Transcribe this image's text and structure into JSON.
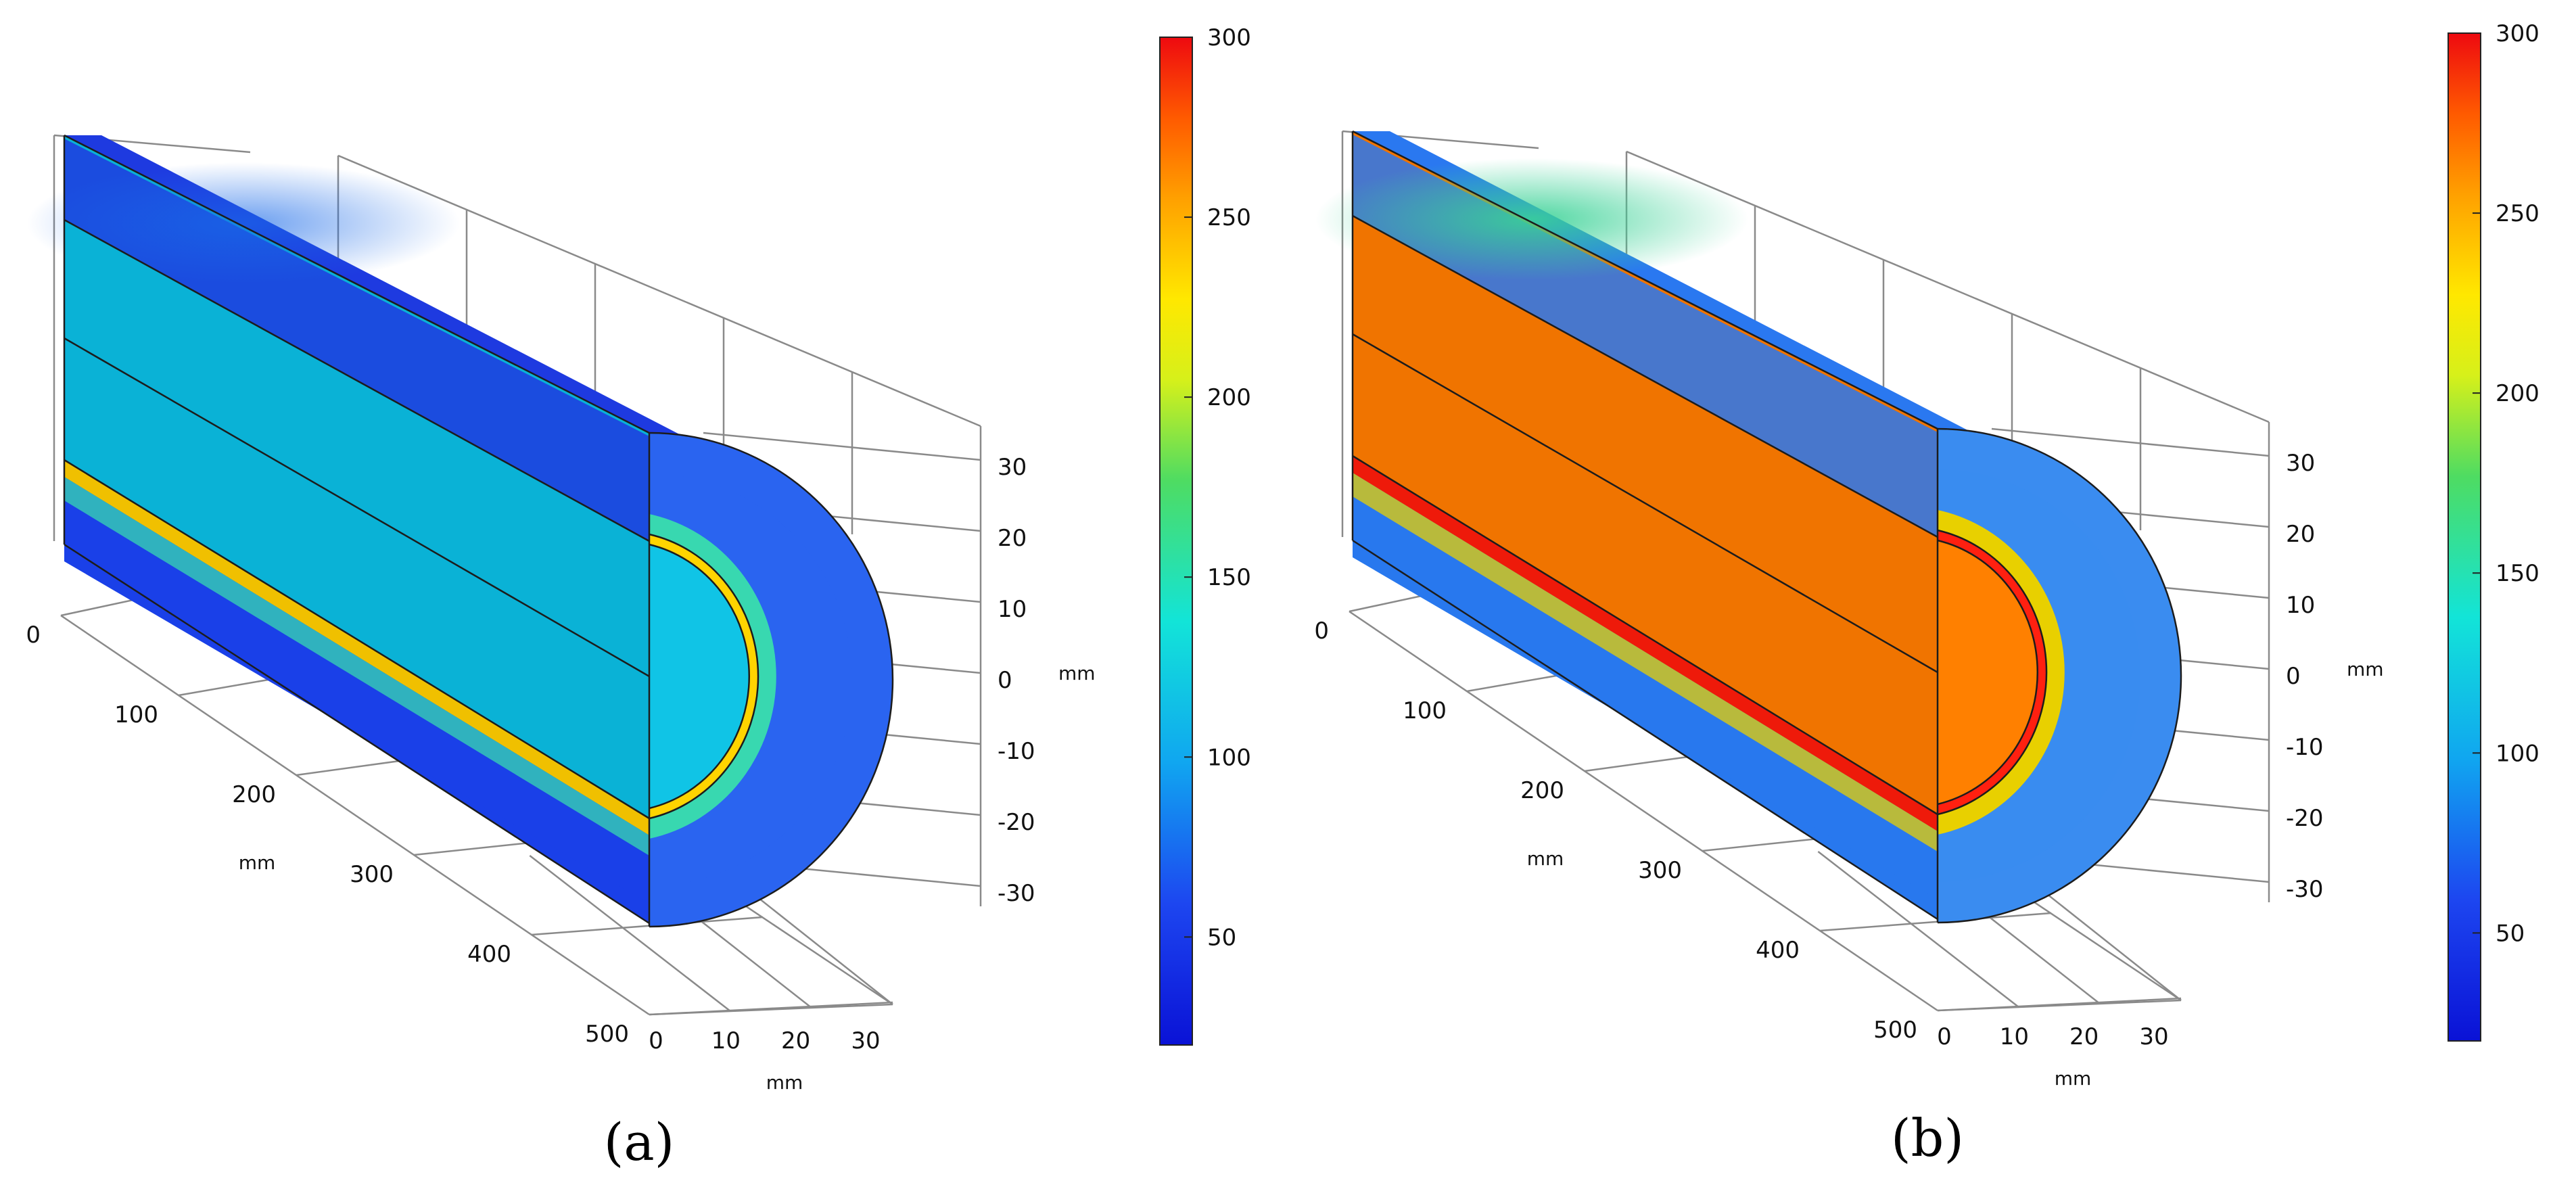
{
  "panels": [
    {
      "label": "(a)",
      "axes": {
        "x_ticks": [
          "0",
          "100",
          "200",
          "300",
          "400",
          "500"
        ],
        "x_unit": "mm",
        "y_ticks": [
          "0",
          "10",
          "20",
          "30"
        ],
        "y_unit": "mm",
        "z_ticks": [
          "30",
          "20",
          "10",
          "0",
          "-10",
          "-20",
          "-30"
        ],
        "z_unit": "mm"
      },
      "colorbar": {
        "ticks": [
          "300",
          "250",
          "200",
          "150",
          "100",
          "50"
        ],
        "range": [
          20,
          300
        ]
      },
      "field": {
        "core": "#0ab2d6",
        "core_end": "#10c4e6",
        "top": "#1e3ae0",
        "bottom": "#1a40e8",
        "hot_stripe": "#f0c000",
        "hot_stripe_end": "#ffd400",
        "ring": "#38d8b0",
        "shell": "#2a64f0"
      }
    },
    {
      "label": "(b)",
      "axes": {
        "x_ticks": [
          "0",
          "100",
          "200",
          "300",
          "400",
          "500"
        ],
        "x_unit": "mm",
        "y_ticks": [
          "0",
          "10",
          "20",
          "30"
        ],
        "y_unit": "mm",
        "z_ticks": [
          "30",
          "20",
          "10",
          "0",
          "-10",
          "-20",
          "-30"
        ],
        "z_unit": "mm"
      },
      "colorbar": {
        "ticks": [
          "300",
          "250",
          "200",
          "150",
          "100",
          "50"
        ],
        "range": [
          20,
          300
        ]
      },
      "field": {
        "core": "#f07400",
        "core_end": "#ff8000",
        "top": "#2a78f0",
        "bottom": "#2878ee",
        "hot_stripe": "#ee1a0a",
        "hot_stripe_end": "#ff2010",
        "ring": "#e8d000",
        "shell": "#3a8cf0"
      }
    }
  ]
}
